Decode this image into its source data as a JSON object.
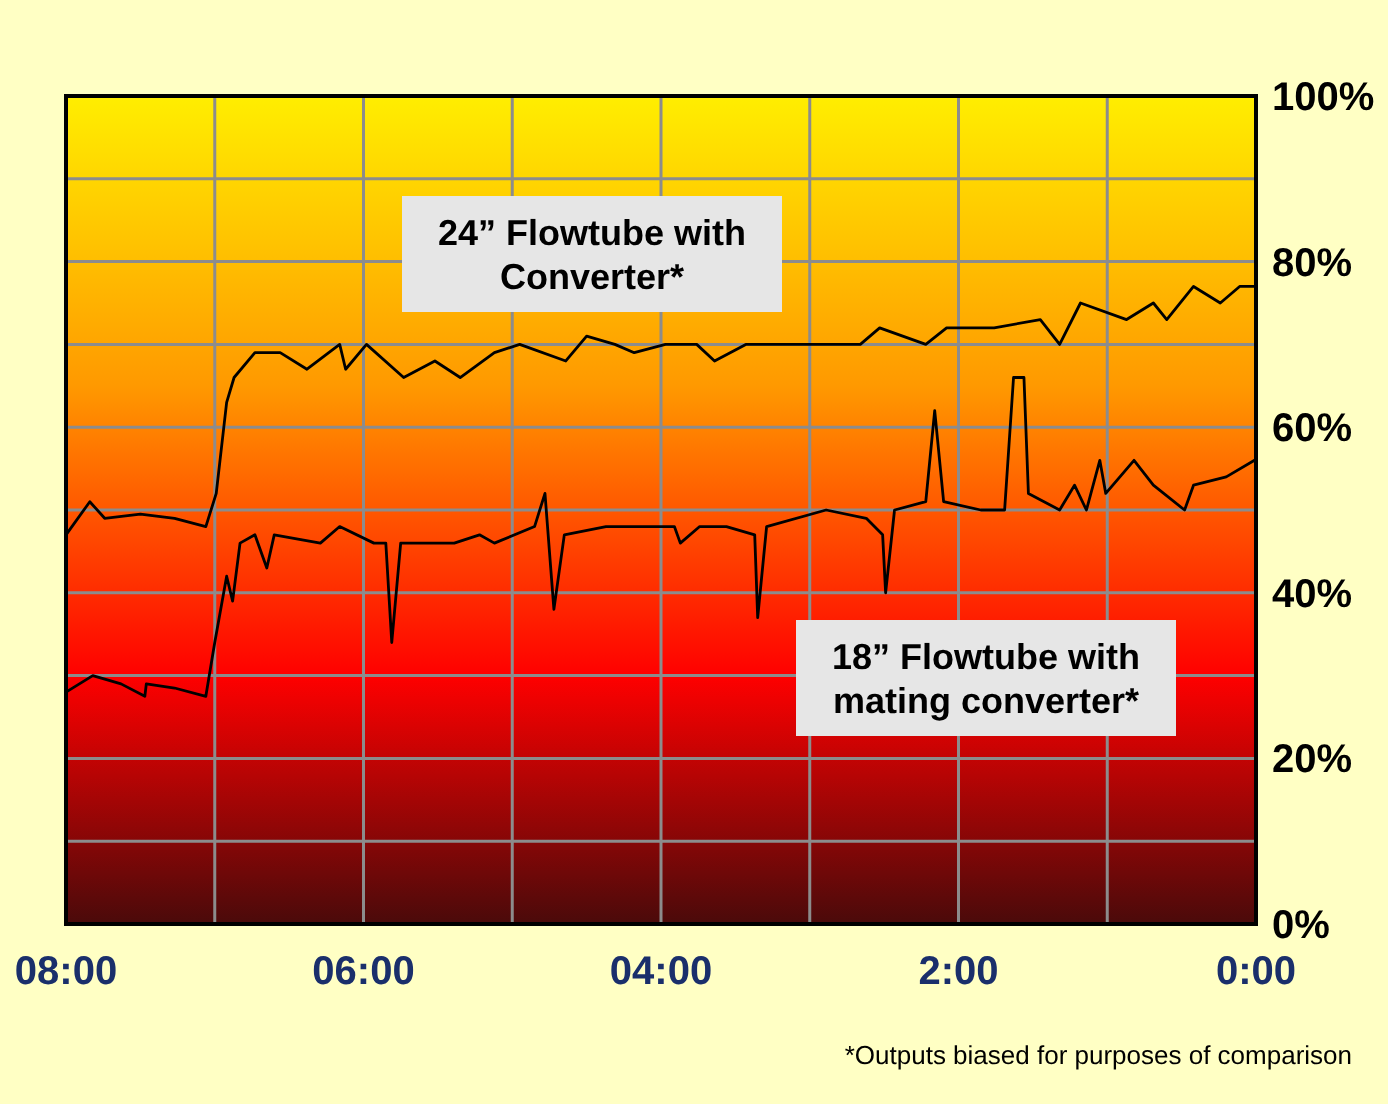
{
  "chart_data": {
    "type": "line",
    "xlim": [
      8,
      0
    ],
    "xticks": [
      {
        "value": 8,
        "label": "08:00"
      },
      {
        "value": 7,
        "label": null
      },
      {
        "value": 6,
        "label": "06:00"
      },
      {
        "value": 5,
        "label": null
      },
      {
        "value": 4,
        "label": "04:00"
      },
      {
        "value": 3,
        "label": null
      },
      {
        "value": 2,
        "label": "2:00"
      },
      {
        "value": 1,
        "label": null
      },
      {
        "value": 0,
        "label": "0:00"
      }
    ],
    "ylim": [
      0,
      100
    ],
    "yticks": [
      {
        "value": 0,
        "label": "0%"
      },
      {
        "value": 10,
        "label": null
      },
      {
        "value": 20,
        "label": "20%"
      },
      {
        "value": 30,
        "label": null
      },
      {
        "value": 40,
        "label": "40%"
      },
      {
        "value": 50,
        "label": null
      },
      {
        "value": 60,
        "label": "60%"
      },
      {
        "value": 70,
        "label": null
      },
      {
        "value": 80,
        "label": "80%"
      },
      {
        "value": 90,
        "label": null
      },
      {
        "value": 100,
        "label": "100%"
      }
    ],
    "grid": true,
    "series": [
      {
        "name": "24” Flowtube with Converter*",
        "color": "#000000",
        "x": [
          8.0,
          7.84,
          7.74,
          7.5,
          7.27,
          7.06,
          6.99,
          6.92,
          6.87,
          6.73,
          6.56,
          6.38,
          6.16,
          6.12,
          5.98,
          5.73,
          5.52,
          5.35,
          5.12,
          4.95,
          4.64,
          4.5,
          4.31,
          4.18,
          3.97,
          3.76,
          3.64,
          3.43,
          3.1,
          2.66,
          2.53,
          2.22,
          2.08,
          1.76,
          1.45,
          1.32,
          1.18,
          0.87,
          0.69,
          0.6,
          0.42,
          0.24,
          0.11,
          0.01
        ],
        "values": [
          47,
          51,
          49,
          49.5,
          49,
          48,
          52,
          63,
          66,
          69,
          69,
          67,
          70,
          67,
          70,
          66,
          68,
          66,
          69,
          70,
          68,
          71,
          70,
          69,
          70,
          70,
          68,
          70,
          70,
          70,
          72,
          70,
          72,
          72,
          73,
          70,
          75,
          73,
          75,
          73,
          77,
          75,
          77,
          77
        ]
      },
      {
        "name": "18” Flowtube with mating converter*",
        "color": "#000000",
        "x": [
          8.0,
          7.82,
          7.63,
          7.47,
          7.46,
          7.27,
          7.06,
          7.0,
          6.92,
          6.88,
          6.83,
          6.73,
          6.65,
          6.6,
          6.29,
          6.16,
          5.93,
          5.85,
          5.81,
          5.75,
          5.39,
          5.22,
          5.12,
          4.85,
          4.78,
          4.72,
          4.65,
          4.37,
          3.91,
          3.87,
          3.74,
          3.56,
          3.37,
          3.35,
          3.29,
          2.89,
          2.62,
          2.51,
          2.49,
          2.43,
          2.22,
          2.16,
          2.1,
          1.85,
          1.69,
          1.63,
          1.56,
          1.53,
          1.32,
          1.22,
          1.14,
          1.05,
          1.01,
          0.82,
          0.69,
          0.48,
          0.42,
          0.2,
          0.01
        ],
        "values": [
          28,
          30,
          29,
          27.5,
          29,
          28.5,
          27.5,
          34,
          42,
          39,
          46,
          47,
          43,
          47,
          46,
          48,
          46,
          46,
          34,
          46,
          46,
          47,
          46,
          48,
          52,
          38,
          47,
          48,
          48,
          46,
          48,
          48,
          47,
          37,
          48,
          50,
          49,
          47,
          40,
          50,
          51,
          62,
          51,
          50,
          50,
          66,
          66,
          52,
          50,
          53,
          50,
          56,
          52,
          56,
          53,
          50,
          53,
          54,
          56
        ]
      }
    ],
    "annotations": [
      "*Outputs biased for purposes of comparison"
    ]
  }
}
